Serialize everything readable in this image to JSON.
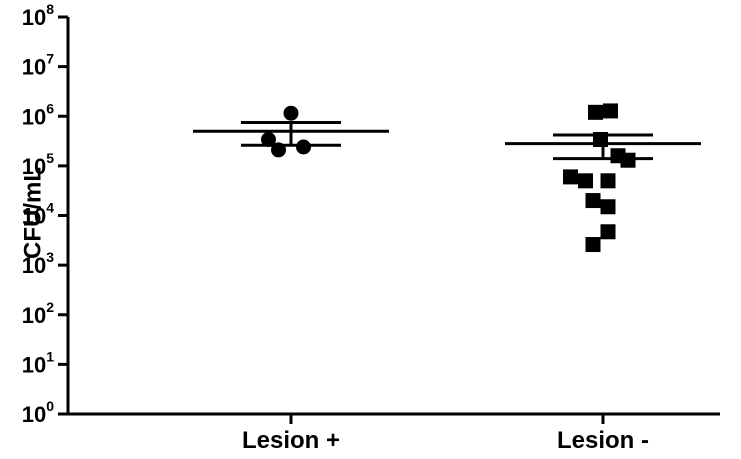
{
  "chart_data": {
    "type": "scatter",
    "yscale": "log",
    "ylim": [
      1,
      100000000
    ],
    "ylabel": "CFU/mL",
    "categories": [
      "Lesion +",
      "Lesion -"
    ],
    "y_ticks": [
      {
        "base": "10",
        "exp": "0",
        "value": 1
      },
      {
        "base": "10",
        "exp": "1",
        "value": 10
      },
      {
        "base": "10",
        "exp": "2",
        "value": 100
      },
      {
        "base": "10",
        "exp": "3",
        "value": 1000
      },
      {
        "base": "10",
        "exp": "4",
        "value": 10000
      },
      {
        "base": "10",
        "exp": "5",
        "value": 100000
      },
      {
        "base": "10",
        "exp": "6",
        "value": 1000000
      },
      {
        "base": "10",
        "exp": "7",
        "value": 10000000
      },
      {
        "base": "10",
        "exp": "8",
        "value": 100000000
      }
    ],
    "series": [
      {
        "category": "Lesion +",
        "marker": "circle",
        "mean": 500000,
        "error": [
          260000,
          750000
        ],
        "points": [
          {
            "jitter": 0,
            "y": 1150000
          },
          {
            "jitter": -0.45,
            "y": 340000
          },
          {
            "jitter": -0.25,
            "y": 210000
          },
          {
            "jitter": 0.25,
            "y": 240000
          }
        ]
      },
      {
        "category": "Lesion -",
        "marker": "square",
        "mean": 280000,
        "error": [
          140000,
          420000
        ],
        "points": [
          {
            "jitter": -0.15,
            "y": 1200000
          },
          {
            "jitter": 0.15,
            "y": 1280000
          },
          {
            "jitter": -0.05,
            "y": 340000
          },
          {
            "jitter": 0.3,
            "y": 160000
          },
          {
            "jitter": 0.5,
            "y": 130000
          },
          {
            "jitter": -0.65,
            "y": 60000
          },
          {
            "jitter": -0.35,
            "y": 50000
          },
          {
            "jitter": 0.1,
            "y": 50000
          },
          {
            "jitter": -0.2,
            "y": 20000
          },
          {
            "jitter": 0.1,
            "y": 15000
          },
          {
            "jitter": 0.1,
            "y": 4700
          },
          {
            "jitter": -0.2,
            "y": 2600
          }
        ]
      }
    ]
  },
  "colors": {
    "ink": "#000000",
    "background": "#ffffff"
  }
}
